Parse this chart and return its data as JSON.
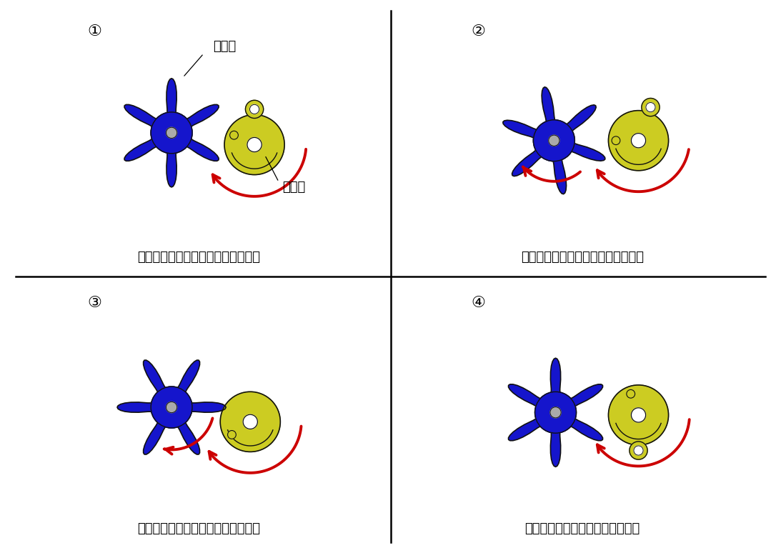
{
  "blue": "#1515CC",
  "yellow": "#CCCC22",
  "gray": "#AAAAAA",
  "outline": "#111111",
  "red": "#CC0000",
  "white": "#FFFFFF",
  "bg": "#FFFFFF",
  "panel_labels": [
    "①",
    "②",
    "③",
    "④"
  ],
  "captions": [
    "原動節だけが回り従動節は回らない",
    "溝にピンが入り従動節も回り始める",
    "溝からピンが抜けるまで回り続ける",
    "ピンが抜けきると従動節は止まる"
  ],
  "label_judo": "従動節",
  "label_gendo": "原動節",
  "n_slots": 6,
  "caption_fs": 13,
  "panel_label_fs": 16,
  "sw_r": 1.05,
  "dr_r": 0.58
}
